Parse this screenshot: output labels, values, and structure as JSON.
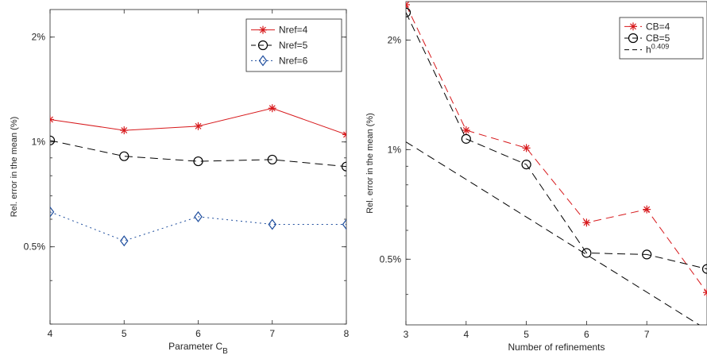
{
  "colors": {
    "red": "#d7191c",
    "black": "#000000",
    "blue": "#1f4e9e",
    "axis": "#262626"
  },
  "chart_data": [
    {
      "type": "line",
      "xlabel": "Parameter C",
      "xlabel_sub": "B",
      "ylabel": "Rel. error in the mean (%)",
      "xlim": [
        4,
        8
      ],
      "ylim": [
        0.3,
        2.4
      ],
      "yscale": "log",
      "x_ticks": [
        4,
        5,
        6,
        7,
        8
      ],
      "x_tick_labels": [
        "4",
        "5",
        "6",
        "7",
        "8"
      ],
      "y_ticks": [
        0.5,
        1,
        2
      ],
      "y_tick_labels": [
        "0.5%",
        "1%",
        "2%"
      ],
      "legend_position": "top-right",
      "x": [
        4,
        5,
        6,
        7,
        8
      ],
      "series": [
        {
          "name": "Nref=4",
          "values": [
            1.16,
            1.08,
            1.11,
            1.25,
            1.05
          ],
          "color": "#d7191c",
          "line": "solid",
          "marker": "star"
        },
        {
          "name": "Nref=5",
          "values": [
            1.01,
            0.91,
            0.88,
            0.89,
            0.85
          ],
          "color": "#000000",
          "line": "dashed",
          "marker": "circle"
        },
        {
          "name": "Nref=6",
          "values": [
            0.63,
            0.52,
            0.61,
            0.58,
            0.58
          ],
          "color": "#1f4e9e",
          "line": "dotted",
          "marker": "diamond"
        }
      ]
    },
    {
      "type": "line",
      "xlabel": "Number of refinements",
      "ylabel": "Rel. error in the mean (%)",
      "xlim": [
        3,
        8
      ],
      "ylim": [
        0.33,
        2.55
      ],
      "yscale": "log",
      "x_ticks": [
        3,
        4,
        5,
        6,
        7
      ],
      "x_tick_labels": [
        "3",
        "4",
        "5",
        "6",
        "7"
      ],
      "y_ticks": [
        0.5,
        1,
        2
      ],
      "y_tick_labels": [
        "0.5%",
        "1%",
        "2%"
      ],
      "legend_position": "top-right",
      "series": [
        {
          "name": "CB=4",
          "x": [
            3,
            4,
            5,
            6,
            7,
            8
          ],
          "values": [
            2.5,
            1.13,
            1.01,
            0.63,
            0.685,
            0.405
          ],
          "color": "#d7191c",
          "line": "dashed",
          "marker": "star"
        },
        {
          "name": "CB=5",
          "x": [
            3,
            4,
            5,
            6,
            7,
            8
          ],
          "values": [
            2.38,
            1.07,
            0.91,
            0.52,
            0.515,
            0.47
          ],
          "color": "#000000",
          "line": "dashed",
          "marker": "circle"
        },
        {
          "name": "h",
          "name_sup": "0.409",
          "x": [
            3,
            8
          ],
          "values": [
            1.05,
            0.32
          ],
          "color": "#000000",
          "line": "dashed",
          "marker": "none"
        }
      ]
    }
  ]
}
